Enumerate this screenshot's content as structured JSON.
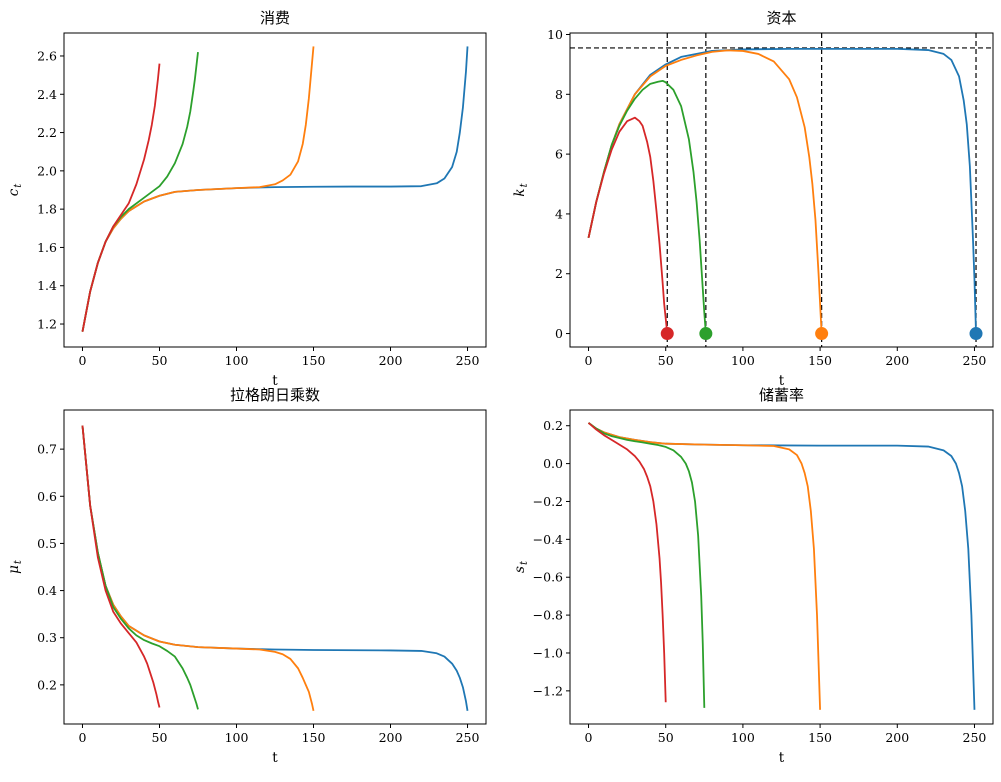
{
  "colors": {
    "T250": "#1f77b4",
    "T150": "#ff7f0e",
    "T75": "#2ca02c",
    "T50": "#d62728",
    "ref": "#000000"
  },
  "chart_data": [
    {
      "type": "line",
      "title": "消费",
      "xlabel": "t",
      "ylabel": "c_t",
      "xlim": [
        -12,
        262
      ],
      "ylim": [
        1.08,
        2.72
      ],
      "xticks": [
        0,
        50,
        100,
        150,
        200,
        250
      ],
      "yticks": [
        1.2,
        1.4,
        1.6,
        1.8,
        2.0,
        2.2,
        2.4,
        2.6
      ],
      "ytick_decimals": 1,
      "series": [
        {
          "color_key": "T250",
          "x": [
            0,
            5,
            10,
            15,
            20,
            25,
            30,
            40,
            50,
            60,
            75,
            100,
            125,
            150,
            175,
            200,
            220,
            230,
            235,
            240,
            243,
            245,
            247,
            249,
            250
          ],
          "y": [
            1.16,
            1.37,
            1.52,
            1.63,
            1.7,
            1.75,
            1.79,
            1.84,
            1.87,
            1.89,
            1.9,
            1.91,
            1.915,
            1.917,
            1.918,
            1.918,
            1.92,
            1.935,
            1.96,
            2.02,
            2.1,
            2.2,
            2.33,
            2.52,
            2.65
          ]
        },
        {
          "color_key": "T150",
          "x": [
            0,
            5,
            10,
            15,
            20,
            25,
            30,
            40,
            50,
            60,
            75,
            100,
            115,
            125,
            130,
            135,
            140,
            143,
            145,
            147,
            149,
            150
          ],
          "y": [
            1.16,
            1.37,
            1.52,
            1.63,
            1.7,
            1.75,
            1.79,
            1.84,
            1.87,
            1.89,
            1.9,
            1.91,
            1.915,
            1.93,
            1.95,
            1.98,
            2.05,
            2.14,
            2.24,
            2.38,
            2.56,
            2.65
          ]
        },
        {
          "color_key": "T75",
          "x": [
            0,
            5,
            10,
            15,
            20,
            25,
            30,
            40,
            50,
            55,
            60,
            65,
            68,
            70,
            72,
            73,
            74,
            75
          ],
          "y": [
            1.16,
            1.37,
            1.52,
            1.63,
            1.71,
            1.76,
            1.8,
            1.86,
            1.92,
            1.97,
            2.04,
            2.14,
            2.23,
            2.31,
            2.42,
            2.48,
            2.55,
            2.62
          ]
        },
        {
          "color_key": "T50",
          "x": [
            0,
            5,
            10,
            15,
            20,
            25,
            30,
            35,
            40,
            43,
            45,
            47,
            49,
            50
          ],
          "y": [
            1.16,
            1.37,
            1.52,
            1.63,
            1.71,
            1.77,
            1.83,
            1.93,
            2.06,
            2.16,
            2.24,
            2.34,
            2.48,
            2.56
          ]
        }
      ]
    },
    {
      "type": "line",
      "title": "资本",
      "xlabel": "t",
      "ylabel": "k_t",
      "xlim": [
        -12,
        262
      ],
      "ylim": [
        -0.45,
        10.05
      ],
      "xticks": [
        0,
        50,
        100,
        150,
        200,
        250
      ],
      "yticks": [
        0,
        2,
        4,
        6,
        8,
        10
      ],
      "ytick_decimals": 0,
      "hline": 9.55,
      "vlines": [
        51,
        76,
        151,
        251
      ],
      "terminal_markers": [
        {
          "x": 251,
          "y": 0,
          "color_key": "T250"
        },
        {
          "x": 151,
          "y": 0,
          "color_key": "T150"
        },
        {
          "x": 76,
          "y": 0,
          "color_key": "T75"
        },
        {
          "x": 51,
          "y": 0,
          "color_key": "T50"
        }
      ],
      "series": [
        {
          "color_key": "T250",
          "x": [
            0,
            5,
            10,
            15,
            20,
            30,
            40,
            50,
            60,
            80,
            100,
            130,
            160,
            200,
            220,
            230,
            235,
            240,
            243,
            245,
            247,
            249,
            250,
            251
          ],
          "y": [
            3.2,
            4.4,
            5.4,
            6.3,
            7.0,
            8.0,
            8.65,
            9.0,
            9.25,
            9.45,
            9.5,
            9.52,
            9.52,
            9.52,
            9.48,
            9.35,
            9.15,
            8.6,
            7.8,
            7.0,
            5.6,
            3.2,
            1.8,
            0.0
          ]
        },
        {
          "color_key": "T150",
          "x": [
            0,
            5,
            10,
            15,
            20,
            30,
            40,
            50,
            60,
            70,
            80,
            90,
            100,
            110,
            120,
            130,
            135,
            140,
            143,
            145,
            147,
            149,
            150,
            151
          ],
          "y": [
            3.2,
            4.4,
            5.4,
            6.3,
            7.0,
            8.0,
            8.6,
            8.95,
            9.15,
            9.3,
            9.42,
            9.47,
            9.45,
            9.35,
            9.1,
            8.5,
            7.9,
            6.9,
            5.9,
            5.0,
            3.8,
            2.0,
            1.0,
            0.0
          ]
        },
        {
          "color_key": "T75",
          "x": [
            0,
            5,
            10,
            15,
            20,
            25,
            30,
            35,
            40,
            45,
            48,
            50,
            55,
            60,
            65,
            68,
            70,
            72,
            74,
            75,
            76
          ],
          "y": [
            3.2,
            4.4,
            5.4,
            6.3,
            6.95,
            7.45,
            7.85,
            8.15,
            8.35,
            8.42,
            8.45,
            8.4,
            8.15,
            7.6,
            6.5,
            5.4,
            4.4,
            3.1,
            1.5,
            0.7,
            0.0
          ]
        },
        {
          "color_key": "T50",
          "x": [
            0,
            5,
            10,
            15,
            20,
            25,
            30,
            33,
            35,
            38,
            40,
            42,
            44,
            46,
            48,
            49,
            50,
            51
          ],
          "y": [
            3.2,
            4.4,
            5.35,
            6.15,
            6.75,
            7.1,
            7.22,
            7.1,
            6.95,
            6.4,
            5.9,
            5.1,
            4.1,
            3.0,
            1.7,
            1.0,
            0.5,
            0.0
          ]
        }
      ]
    },
    {
      "type": "line",
      "title": "拉格朗日乘数",
      "xlabel": "t",
      "ylabel": "μ_t",
      "xlim": [
        -12,
        262
      ],
      "ylim": [
        0.117,
        0.783
      ],
      "xticks": [
        0,
        50,
        100,
        150,
        200,
        250
      ],
      "yticks": [
        0.2,
        0.3,
        0.4,
        0.5,
        0.6,
        0.7
      ],
      "ytick_decimals": 1,
      "series": [
        {
          "color_key": "T250",
          "x": [
            0,
            5,
            10,
            15,
            20,
            25,
            30,
            40,
            50,
            60,
            75,
            100,
            125,
            150,
            200,
            220,
            230,
            235,
            240,
            243,
            245,
            247,
            249,
            250
          ],
          "y": [
            0.75,
            0.58,
            0.48,
            0.41,
            0.37,
            0.345,
            0.325,
            0.305,
            0.292,
            0.285,
            0.28,
            0.277,
            0.275,
            0.274,
            0.273,
            0.272,
            0.267,
            0.26,
            0.245,
            0.23,
            0.215,
            0.195,
            0.165,
            0.145
          ]
        },
        {
          "color_key": "T150",
          "x": [
            0,
            5,
            10,
            15,
            20,
            25,
            30,
            40,
            50,
            60,
            75,
            100,
            115,
            125,
            130,
            135,
            140,
            143,
            145,
            147,
            149,
            150
          ],
          "y": [
            0.75,
            0.58,
            0.48,
            0.41,
            0.37,
            0.345,
            0.325,
            0.305,
            0.292,
            0.285,
            0.28,
            0.277,
            0.275,
            0.27,
            0.265,
            0.255,
            0.235,
            0.215,
            0.2,
            0.185,
            0.16,
            0.145
          ]
        },
        {
          "color_key": "T75",
          "x": [
            0,
            5,
            10,
            15,
            20,
            25,
            30,
            35,
            40,
            45,
            50,
            55,
            60,
            65,
            68,
            70,
            72,
            74,
            75
          ],
          "y": [
            0.75,
            0.58,
            0.48,
            0.41,
            0.365,
            0.34,
            0.32,
            0.305,
            0.295,
            0.288,
            0.282,
            0.272,
            0.26,
            0.235,
            0.215,
            0.2,
            0.18,
            0.16,
            0.148
          ]
        },
        {
          "color_key": "T50",
          "x": [
            0,
            5,
            10,
            15,
            20,
            25,
            30,
            35,
            38,
            40,
            42,
            44,
            46,
            48,
            49,
            50
          ],
          "y": [
            0.75,
            0.58,
            0.47,
            0.4,
            0.355,
            0.33,
            0.31,
            0.29,
            0.272,
            0.26,
            0.245,
            0.225,
            0.205,
            0.18,
            0.165,
            0.152
          ]
        }
      ]
    },
    {
      "type": "line",
      "title": "储蓄率",
      "xlabel": "t",
      "ylabel": "s_t",
      "xlim": [
        -12,
        262
      ],
      "ylim": [
        -1.375,
        0.283
      ],
      "xticks": [
        0,
        50,
        100,
        150,
        200,
        250
      ],
      "yticks": [
        0.2,
        0.0,
        -0.2,
        -0.4,
        -0.6,
        -0.8,
        -1.0,
        -1.2
      ],
      "ytick_decimals": 1,
      "series": [
        {
          "color_key": "T250",
          "x": [
            0,
            5,
            10,
            20,
            30,
            40,
            50,
            75,
            100,
            150,
            200,
            220,
            230,
            235,
            238,
            240,
            242,
            244,
            246,
            248,
            249,
            250
          ],
          "y": [
            0.215,
            0.185,
            0.165,
            0.14,
            0.125,
            0.113,
            0.105,
            0.1,
            0.097,
            0.095,
            0.095,
            0.09,
            0.07,
            0.04,
            0.0,
            -0.05,
            -0.12,
            -0.25,
            -0.45,
            -0.8,
            -1.05,
            -1.3
          ]
        },
        {
          "color_key": "T150",
          "x": [
            0,
            5,
            10,
            20,
            30,
            40,
            50,
            75,
            100,
            120,
            130,
            135,
            138,
            140,
            142,
            144,
            146,
            148,
            149,
            150
          ],
          "y": [
            0.215,
            0.185,
            0.165,
            0.14,
            0.125,
            0.113,
            0.105,
            0.1,
            0.097,
            0.093,
            0.075,
            0.045,
            0.0,
            -0.05,
            -0.12,
            -0.25,
            -0.45,
            -0.8,
            -1.05,
            -1.3
          ]
        },
        {
          "color_key": "T75",
          "x": [
            0,
            5,
            10,
            15,
            20,
            25,
            30,
            35,
            40,
            45,
            50,
            55,
            60,
            63,
            65,
            67,
            69,
            71,
            73,
            74,
            75
          ],
          "y": [
            0.215,
            0.185,
            0.16,
            0.145,
            0.135,
            0.125,
            0.118,
            0.112,
            0.105,
            0.098,
            0.088,
            0.07,
            0.035,
            0.0,
            -0.04,
            -0.1,
            -0.2,
            -0.38,
            -0.7,
            -0.95,
            -1.29
          ]
        },
        {
          "color_key": "T50",
          "x": [
            0,
            5,
            10,
            15,
            20,
            25,
            30,
            33,
            36,
            38,
            40,
            42,
            44,
            46,
            47,
            48,
            49,
            50
          ],
          "y": [
            0.215,
            0.18,
            0.15,
            0.125,
            0.1,
            0.075,
            0.04,
            0.01,
            -0.03,
            -0.07,
            -0.12,
            -0.2,
            -0.32,
            -0.5,
            -0.63,
            -0.8,
            -1.0,
            -1.26
          ]
        }
      ]
    }
  ]
}
